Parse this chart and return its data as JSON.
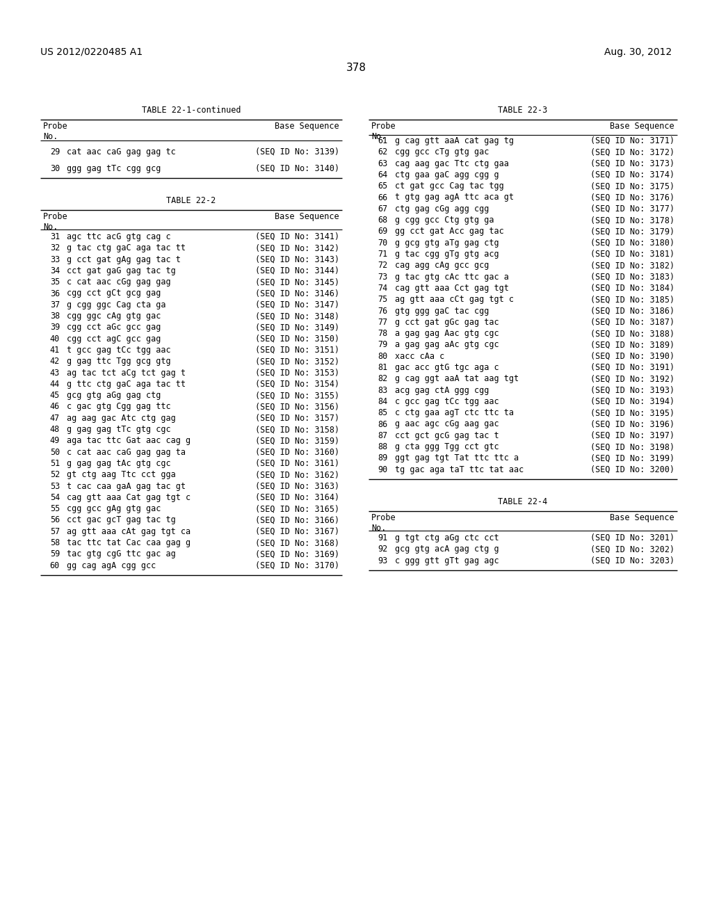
{
  "header_left": "US 2012/0220485 A1",
  "header_right": "Aug. 30, 2012",
  "page_number": "378",
  "background_color": "#ffffff",
  "table1_title": "TABLE 22-1-continued",
  "table1_data": [
    [
      "29",
      "cat aac caG gag gag tc",
      "(SEQ ID No: 3139)"
    ],
    [
      "30",
      "ggg gag tTc cgg gcg",
      "(SEQ ID No: 3140)"
    ]
  ],
  "table2_title": "TABLE 22-2",
  "table2_data": [
    [
      "31",
      "agc ttc acG gtg cag c",
      "(SEQ ID No: 3141)"
    ],
    [
      "32",
      "g tac ctg gaC aga tac tt",
      "(SEQ ID No: 3142)"
    ],
    [
      "33",
      "g cct gat gAg gag tac t",
      "(SEQ ID No: 3143)"
    ],
    [
      "34",
      "cct gat gaG gag tac tg",
      "(SEQ ID No: 3144)"
    ],
    [
      "35",
      "c cat aac cGg gag gag",
      "(SEQ ID No: 3145)"
    ],
    [
      "36",
      "cgg cct gCt gcg gag",
      "(SEQ ID No: 3146)"
    ],
    [
      "37",
      "g cgg ggc Cag cta ga",
      "(SEQ ID No: 3147)"
    ],
    [
      "38",
      "cgg ggc cAg gtg gac",
      "(SEQ ID No: 3148)"
    ],
    [
      "39",
      "cgg cct aGc gcc gag",
      "(SEQ ID No: 3149)"
    ],
    [
      "40",
      "cgg cct agC gcc gag",
      "(SEQ ID No: 3150)"
    ],
    [
      "41",
      "t gcc gag tCc tgg aac",
      "(SEQ ID No: 3151)"
    ],
    [
      "42",
      "g gag ttc Tgg gcg gtg",
      "(SEQ ID No: 3152)"
    ],
    [
      "43",
      "ag tac tct aCg tct gag t",
      "(SEQ ID No: 3153)"
    ],
    [
      "44",
      "g ttc ctg gaC aga tac tt",
      "(SEQ ID No: 3154)"
    ],
    [
      "45",
      "gcg gtg aGg gag ctg",
      "(SEQ ID No: 3155)"
    ],
    [
      "46",
      "c gac gtg Cgg gag ttc",
      "(SEQ ID No: 3156)"
    ],
    [
      "47",
      "ag aag gac Atc ctg gag",
      "(SEQ ID No: 3157)"
    ],
    [
      "48",
      "g gag gag tTc gtg cgc",
      "(SEQ ID No: 3158)"
    ],
    [
      "49",
      "aga tac ttc Gat aac cag g",
      "(SEQ ID No: 3159)"
    ],
    [
      "50",
      "c cat aac caG gag gag ta",
      "(SEQ ID No: 3160)"
    ],
    [
      "51",
      "g gag gag tAc gtg cgc",
      "(SEQ ID No: 3161)"
    ],
    [
      "52",
      "gt ctg aag Ttc cct gga",
      "(SEQ ID No: 3162)"
    ],
    [
      "53",
      "t cac caa gaA gag tac gt",
      "(SEQ ID No: 3163)"
    ],
    [
      "54",
      "cag gtt aaa Cat gag tgt c",
      "(SEQ ID No: 3164)"
    ],
    [
      "55",
      "cgg gcc gAg gtg gac",
      "(SEQ ID No: 3165)"
    ],
    [
      "56",
      "cct gac gcT gag tac tg",
      "(SEQ ID No: 3166)"
    ],
    [
      "57",
      "ag gtt aaa cAt gag tgt ca",
      "(SEQ ID No: 3167)"
    ],
    [
      "58",
      "tac ttc tat Cac caa gag g",
      "(SEQ ID No: 3168)"
    ],
    [
      "59",
      "tac gtg cgG ttc gac ag",
      "(SEQ ID No: 3169)"
    ],
    [
      "60",
      "gg cag agA cgg gcc",
      "(SEQ ID No: 3170)"
    ]
  ],
  "table3_title": "TABLE 22-3",
  "table3_data": [
    [
      "61",
      "g cag gtt aaA cat gag tg",
      "(SEQ ID No: 3171)"
    ],
    [
      "62",
      "cgg gcc cTg gtg gac",
      "(SEQ ID No: 3172)"
    ],
    [
      "63",
      "cag aag gac Ttc ctg gaa",
      "(SEQ ID No: 3173)"
    ],
    [
      "64",
      "ctg gaa gaC agg cgg g",
      "(SEQ ID No: 3174)"
    ],
    [
      "65",
      "ct gat gcc Cag tac tgg",
      "(SEQ ID No: 3175)"
    ],
    [
      "66",
      "t gtg gag agA ttc aca gt",
      "(SEQ ID No: 3176)"
    ],
    [
      "67",
      "ctg gag cGg agg cgg",
      "(SEQ ID No: 3177)"
    ],
    [
      "68",
      "g cgg gcc Ctg gtg ga",
      "(SEQ ID No: 3178)"
    ],
    [
      "69",
      "gg cct gat Acc gag tac",
      "(SEQ ID No: 3179)"
    ],
    [
      "70",
      "g gcg gtg aTg gag ctg",
      "(SEQ ID No: 3180)"
    ],
    [
      "71",
      "g tac cgg gTg gtg acg",
      "(SEQ ID No: 3181)"
    ],
    [
      "72",
      "cag agg cAg gcc gcg",
      "(SEQ ID No: 3182)"
    ],
    [
      "73",
      "g tac gtg cAc ttc gac a",
      "(SEQ ID No: 3183)"
    ],
    [
      "74",
      "cag gtt aaa Cct gag tgt",
      "(SEQ ID No: 3184)"
    ],
    [
      "75",
      "ag gtt aaa cCt gag tgt c",
      "(SEQ ID No: 3185)"
    ],
    [
      "76",
      "gtg ggg gaC tac cgg",
      "(SEQ ID No: 3186)"
    ],
    [
      "77",
      "g cct gat gGc gag tac",
      "(SEQ ID No: 3187)"
    ],
    [
      "78",
      "a gag gag Aac gtg cgc",
      "(SEQ ID No: 3188)"
    ],
    [
      "79",
      "a gag gag aAc gtg cgc",
      "(SEQ ID No: 3189)"
    ],
    [
      "80",
      "xacc cAa c",
      "(SEQ ID No: 3190)"
    ],
    [
      "81",
      "gac acc gtG tgc aga c",
      "(SEQ ID No: 3191)"
    ],
    [
      "82",
      "g cag ggt aaA tat aag tgt",
      "(SEQ ID No: 3192)"
    ],
    [
      "83",
      "acg gag ctA ggg cgg",
      "(SEQ ID No: 3193)"
    ],
    [
      "84",
      "c gcc gag tCc tgg aac",
      "(SEQ ID No: 3194)"
    ],
    [
      "85",
      "c ctg gaa agT ctc ttc ta",
      "(SEQ ID No: 3195)"
    ],
    [
      "86",
      "g aac agc cGg aag gac",
      "(SEQ ID No: 3196)"
    ],
    [
      "87",
      "cct gct gcG gag tac t",
      "(SEQ ID No: 3197)"
    ],
    [
      "88",
      "g cta ggg Tgg cct gtc",
      "(SEQ ID No: 3198)"
    ],
    [
      "89",
      "ggt gag tgt Tat ttc ttc a",
      "(SEQ ID No: 3199)"
    ],
    [
      "90",
      "tg gac aga taT ttc tat aac",
      "(SEQ ID No: 3200)"
    ]
  ],
  "table4_title": "TABLE 22-4",
  "table4_data": [
    [
      "91",
      "g tgt ctg aGg ctc cct",
      "(SEQ ID No: 3201)"
    ],
    [
      "92",
      "gcg gtg acA gag ctg g",
      "(SEQ ID No: 3202)"
    ],
    [
      "93",
      "c ggg gtt gTt gag agc",
      "(SEQ ID No: 3203)"
    ]
  ]
}
